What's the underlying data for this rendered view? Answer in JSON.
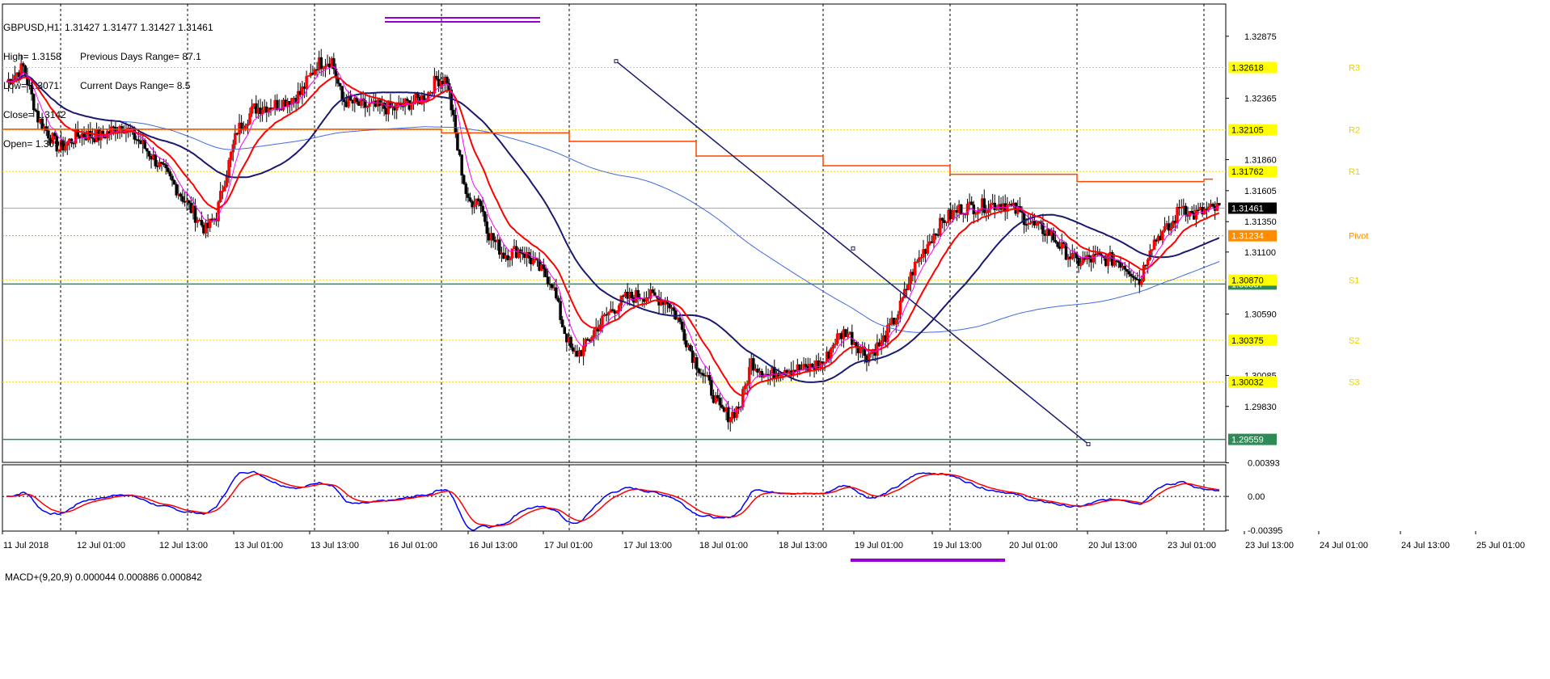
{
  "header": {
    "symbol_line": "GBPUSD,H1  1.31427 1.31477 1.31427 1.31461",
    "high": "High= 1.3158",
    "low": "Low= 1.3071",
    "close": "Close= 1.3142",
    "open": "Open= 1.3096",
    "prev_range": "Previous Days Range= 87.1",
    "curr_range": "Current Days Range= 8.5"
  },
  "macd_label": "MACD+(9,20,9) 0.000044 0.000886 0.000842",
  "chart_data": {
    "type": "candlestick",
    "symbol": "GBPUSD",
    "timeframe": "H1",
    "ylim": [
      1.2937,
      1.3314
    ],
    "price_ticks": [
      "1.32875",
      "1.32365",
      "1.31860",
      "1.31605",
      "1.31350",
      "1.31100",
      "1.30590",
      "1.30085",
      "1.29830"
    ],
    "x_ticks": [
      "11 Jul 2018",
      "12 Jul 01:00",
      "12 Jul 13:00",
      "13 Jul 01:00",
      "13 Jul 13:00",
      "16 Jul 01:00",
      "16 Jul 13:00",
      "17 Jul 01:00",
      "17 Jul 13:00",
      "18 Jul 01:00",
      "18 Jul 13:00",
      "19 Jul 01:00",
      "19 Jul 13:00",
      "20 Jul 01:00",
      "20 Jul 13:00",
      "23 Jul 01:00",
      "23 Jul 13:00",
      "24 Jul 01:00",
      "24 Jul 13:00",
      "25 Jul 01:00"
    ],
    "price_tags": [
      {
        "value": "1.32618",
        "price": 1.32618,
        "color": "#ffff00"
      },
      {
        "value": "1.32105",
        "price": 1.32105,
        "color": "#ffff00"
      },
      {
        "value": "1.31762",
        "price": 1.31762,
        "color": "#ffff00"
      },
      {
        "value": "1.31461",
        "price": 1.31461,
        "color": "#000000"
      },
      {
        "value": "1.31234",
        "price": 1.31234,
        "color": "#ff8c00"
      },
      {
        "value": "1.30837",
        "price": 1.30837,
        "color": "#2e8b57"
      },
      {
        "value": "1.30870",
        "price": 1.3087,
        "color": "#ffff00"
      },
      {
        "value": "1.30375",
        "price": 1.30375,
        "color": "#ffff00"
      },
      {
        "value": "1.30032",
        "price": 1.30032,
        "color": "#ffff00"
      },
      {
        "value": "1.29559",
        "price": 1.29559,
        "color": "#2e8b57"
      }
    ],
    "pivot_labels": [
      {
        "name": "R3",
        "price": 1.32618
      },
      {
        "name": "R2",
        "price": 1.32105
      },
      {
        "name": "R1",
        "price": 1.31762
      },
      {
        "name": "Pivot",
        "price": 1.31234
      },
      {
        "name": "S1",
        "price": 1.3087
      },
      {
        "name": "S2",
        "price": 1.30375
      },
      {
        "name": "S3",
        "price": 1.30032
      }
    ],
    "macd": {
      "ylim": [
        -0.00405,
        0.0037
      ],
      "ticks": [
        "0.00393",
        "0.00",
        "-0.00395"
      ],
      "values": {
        "main": 4.4e-05,
        "signal": 0.000886,
        "hist": 0.000842
      }
    }
  }
}
